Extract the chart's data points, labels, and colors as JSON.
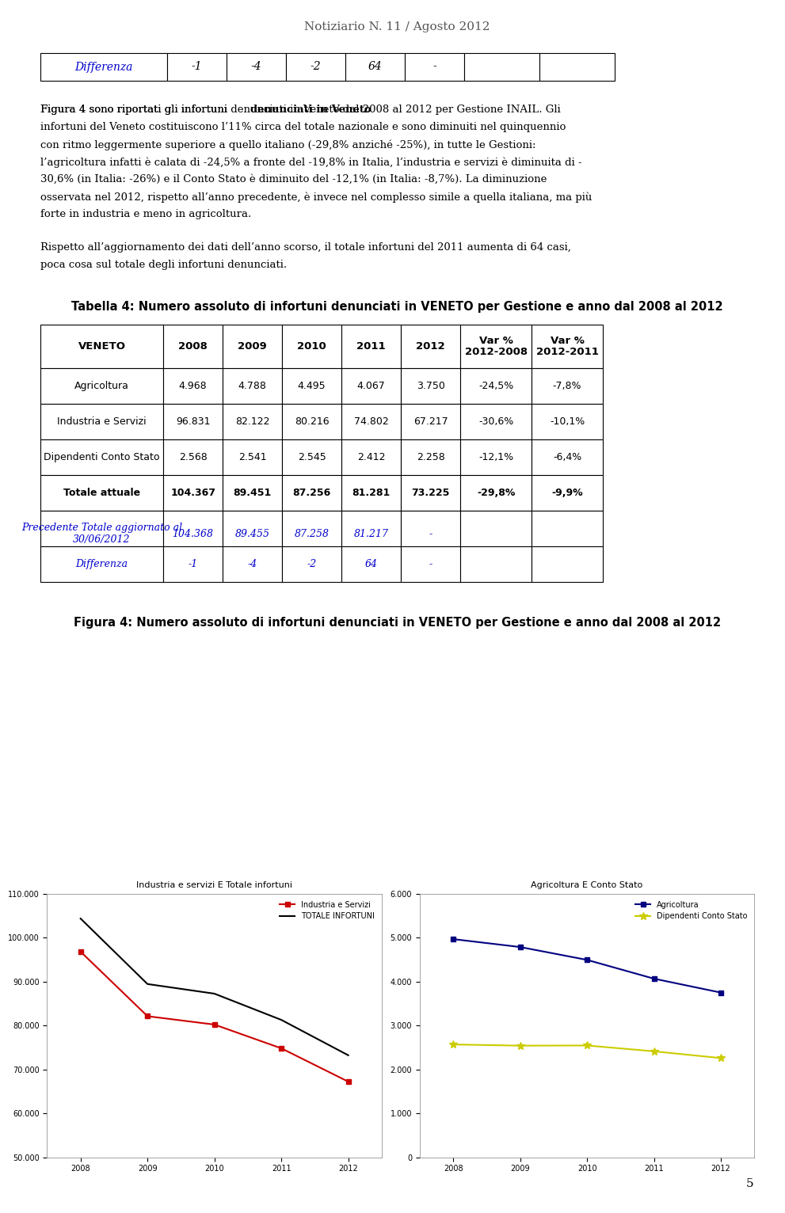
{
  "page_title": "Notiziario N. 11 / Agosto 2012",
  "page_number": "5",
  "differenza_row_top": {
    "label": "Differenza",
    "values": [
      "-1",
      "-4",
      "-2",
      "64",
      "-",
      "",
      ""
    ]
  },
  "body_text": [
    "Figura 4 sono riportati gli infortuni <b>denunciati in Veneto</b> dal 2008 al 2012 per Gestione INAIL. Gli",
    "infortuni del Veneto costituiscono l’11% circa del totale nazionale e sono diminuiti nel quinquennio",
    "con ritmo leggermente superiore a quello italiano (-29,8% anziché -25%), in tutte le Gestioni:",
    "l’agricoltura infatti è calata di -24,5% a fronte del -19,8% in Italia, l’industria e servizi è diminuita di -",
    "30,6% (in Italia: -26%) e il Conto Stato è diminuito del -12,1% (in Italia: -8,7%). La diminuzione",
    "osservata nel 2012, rispetto all’anno precedente, è invece nel complesso simile a quella italiana, ma più",
    "forte in industria e meno in agricoltura."
  ],
  "body_text2": [
    "Rispetto all’aggiornamento dei dati dell’anno scorso, il totale infortuni del 2011 aumenta di 64 casi,",
    "poca cosa sul totale degli infortuni denunciati."
  ],
  "table_title": "Tabella 4: Numero assoluto di infortuni denunciati in VENETO per Gestione e anno dal 2008 al 2012",
  "table_headers": [
    "VENETO",
    "2008",
    "2009",
    "2010",
    "2011",
    "2012",
    "Var %\n2012-2008",
    "Var %\n2012-2011"
  ],
  "table_rows": [
    {
      "label": "Agricoltura",
      "values": [
        "4.968",
        "4.788",
        "4.495",
        "4.067",
        "3.750",
        "-24,5%",
        "-7,8%"
      ],
      "bold": false,
      "italic": false
    },
    {
      "label": "Industria e Servizi",
      "values": [
        "96.831",
        "82.122",
        "80.216",
        "74.802",
        "67.217",
        "-30,6%",
        "-10,1%"
      ],
      "bold": false,
      "italic": false
    },
    {
      "label": "Dipendenti Conto Stato",
      "values": [
        "2.568",
        "2.541",
        "2.545",
        "2.412",
        "2.258",
        "-12,1%",
        "-6,4%"
      ],
      "bold": false,
      "italic": false
    },
    {
      "label": "Totale attuale",
      "values": [
        "104.367",
        "89.451",
        "87.256",
        "81.281",
        "73.225",
        "-29,8%",
        "-9,9%"
      ],
      "bold": true,
      "italic": false
    },
    {
      "label": "Precedente Totale aggiornato al\n30/06/2012",
      "values": [
        "104.368",
        "89.455",
        "87.258",
        "81.217",
        "-",
        "",
        ""
      ],
      "bold": false,
      "italic": true,
      "blue": true
    },
    {
      "label": "Differenza",
      "values": [
        "-1",
        "-4",
        "-2",
        "64",
        "-",
        "",
        ""
      ],
      "bold": false,
      "italic": true,
      "blue": true
    }
  ],
  "fig_title": "Figura 4: Numero assoluto di infortuni denunciati in VENETO per Gestione e anno dal 2008 al 2012",
  "years": [
    2008,
    2009,
    2010,
    2011,
    2012
  ],
  "industria_servizi": [
    96831,
    82122,
    80216,
    74802,
    67217
  ],
  "totale_infortuni": [
    104367,
    89451,
    87256,
    81281,
    73225
  ],
  "agricoltura": [
    4968,
    4788,
    4495,
    4067,
    3750
  ],
  "conto_stato": [
    2568,
    2541,
    2545,
    2412,
    2258
  ],
  "left_chart_title": "Industria e servizi E Totale infortuni",
  "right_chart_title": "Agricoltura E Conto Stato",
  "left_ylim": [
    50000,
    110000
  ],
  "left_yticks": [
    50000,
    60000,
    70000,
    80000,
    90000,
    100000,
    110000
  ],
  "right_ylim": [
    0,
    6000
  ],
  "right_yticks": [
    0,
    1000,
    2000,
    3000,
    4000,
    5000,
    6000
  ],
  "colors": {
    "industria": "#cc0000",
    "totale": "#000000",
    "agricoltura": "#000080",
    "conto_stato": "#cccc00",
    "blue_text": "#0000cc",
    "table_border": "#000000",
    "header_bg": "#ffffff",
    "title_color": "#000000"
  },
  "legend_left": [
    {
      "label": "Industria e Servizi",
      "color": "#cc0000",
      "marker": "s"
    },
    {
      "label": "TOTALE INFORTUNI",
      "color": "#000000",
      "marker": ""
    }
  ],
  "legend_right": [
    {
      "label": "Agricoltura",
      "color": "#000080",
      "marker": "s"
    },
    {
      "label": "Dipendenti Conto Stato",
      "color": "#cccc00",
      "marker": "*"
    }
  ]
}
